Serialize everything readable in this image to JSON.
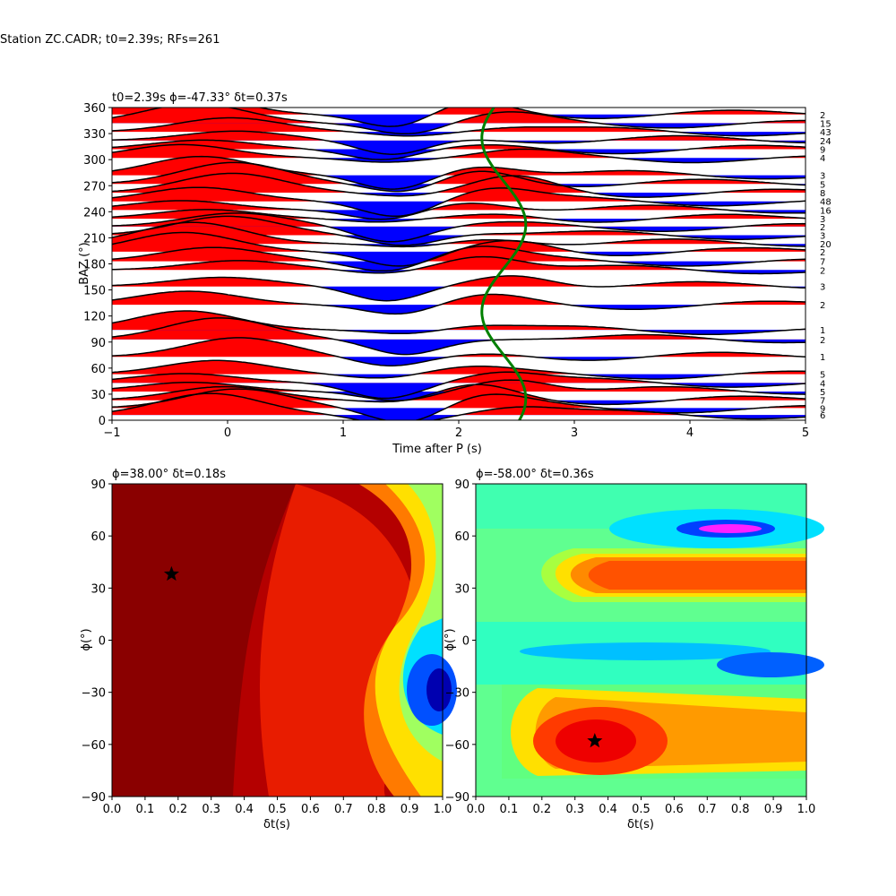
{
  "figure": {
    "suptitle": "Station ZC.CADR; t0=2.39s; RFs=261"
  },
  "chart_data": [
    {
      "type": "line",
      "title": "t0=2.39s ϕ=-47.33° δt=0.37s",
      "xlabel": "Time after P (s)",
      "ylabel": "BAZ (°)",
      "xlim": [
        -1,
        5
      ],
      "ylim": [
        0,
        360
      ],
      "xticks": [
        "−1",
        "0",
        "1",
        "2",
        "3",
        "4",
        "5"
      ],
      "yticks": [
        "0",
        "30",
        "60",
        "90",
        "120",
        "150",
        "180",
        "210",
        "240",
        "270",
        "300",
        "330",
        "360"
      ],
      "fill_colors": {
        "positive": "#ff0000",
        "negative": "#0000ff"
      },
      "moveout_curve_color": "#008000",
      "traces": [
        {
          "baz": 6,
          "count": "6"
        },
        {
          "baz": 14,
          "count": "9"
        },
        {
          "baz": 23,
          "count": "7"
        },
        {
          "baz": 33,
          "count": "5"
        },
        {
          "baz": 43,
          "count": "4"
        },
        {
          "baz": 53,
          "count": "5"
        },
        {
          "baz": 73,
          "count": "1"
        },
        {
          "baz": 93,
          "count": "2"
        },
        {
          "baz": 104,
          "count": "1"
        },
        {
          "baz": 133,
          "count": "2"
        },
        {
          "baz": 154,
          "count": "3"
        },
        {
          "baz": 173,
          "count": "2"
        },
        {
          "baz": 183,
          "count": "7"
        },
        {
          "baz": 194,
          "count": "2"
        },
        {
          "baz": 203,
          "count": "20"
        },
        {
          "baz": 213,
          "count": "3"
        },
        {
          "baz": 223,
          "count": "2"
        },
        {
          "baz": 232,
          "count": "3"
        },
        {
          "baz": 242,
          "count": "16"
        },
        {
          "baz": 252,
          "count": "48"
        },
        {
          "baz": 262,
          "count": "8"
        },
        {
          "baz": 272,
          "count": "5"
        },
        {
          "baz": 282,
          "count": "3"
        },
        {
          "baz": 302,
          "count": "4"
        },
        {
          "baz": 312,
          "count": "9"
        },
        {
          "baz": 322,
          "count": "24"
        },
        {
          "baz": 332,
          "count": "43"
        },
        {
          "baz": 342,
          "count": "15"
        },
        {
          "baz": 352,
          "count": "2"
        }
      ]
    },
    {
      "type": "heatmap",
      "title": "ϕ=38.00° δt=0.18s",
      "xlabel": "δt(s)",
      "ylabel": "ϕ(°)",
      "xlim": [
        0,
        1
      ],
      "ylim": [
        -90,
        90
      ],
      "xticks": [
        "0.0",
        "0.1",
        "0.2",
        "0.3",
        "0.4",
        "0.5",
        "0.6",
        "0.7",
        "0.8",
        "0.9",
        "1.0"
      ],
      "yticks": [
        "−90",
        "−60",
        "−30",
        "0",
        "30",
        "60",
        "90"
      ],
      "colormap": "jet",
      "best": {
        "dt": 0.18,
        "phi": 38
      }
    },
    {
      "type": "heatmap",
      "title": "ϕ=-58.00° δt=0.36s",
      "xlabel": "δt(s)",
      "ylabel": "ϕ(°)",
      "xlim": [
        0,
        1
      ],
      "ylim": [
        -90,
        90
      ],
      "xticks": [
        "0.0",
        "0.1",
        "0.2",
        "0.3",
        "0.4",
        "0.5",
        "0.6",
        "0.7",
        "0.8",
        "0.9",
        "1.0"
      ],
      "yticks": [
        "−90",
        "−60",
        "−30",
        "0",
        "30",
        "60",
        "90"
      ],
      "colormap": "jet",
      "best": {
        "dt": 0.36,
        "phi": -58
      }
    }
  ]
}
